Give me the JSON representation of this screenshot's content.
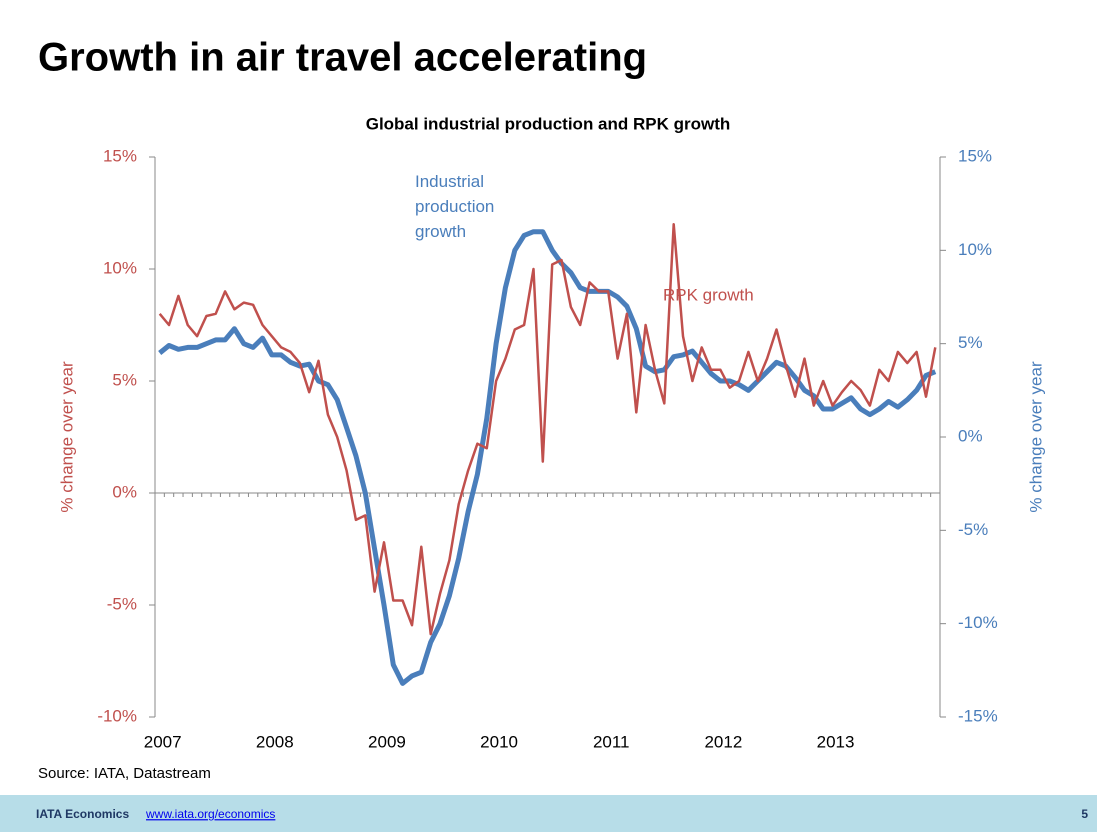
{
  "slide": {
    "title": "Growth in air travel accelerating",
    "source": "Source: IATA, Datastream",
    "footer_org": "IATA Economics",
    "footer_link": "www.iata.org/economics",
    "page": "5"
  },
  "chart_data": {
    "type": "line",
    "title": "Global industrial production and RPK growth",
    "ylabel": "% change over year",
    "y2label": "% change over year",
    "categories": [
      "2007",
      null,
      null,
      null,
      null,
      null,
      null,
      null,
      null,
      null,
      null,
      null,
      "2008",
      null,
      null,
      null,
      null,
      null,
      null,
      null,
      null,
      null,
      null,
      null,
      "2009",
      null,
      null,
      null,
      null,
      null,
      null,
      null,
      null,
      null,
      null,
      null,
      "2010",
      null,
      null,
      null,
      null,
      null,
      null,
      null,
      null,
      null,
      null,
      null,
      "2011",
      null,
      null,
      null,
      null,
      null,
      null,
      null,
      null,
      null,
      null,
      null,
      "2012",
      null,
      null,
      null,
      null,
      null,
      null,
      null,
      null,
      null,
      null,
      null,
      "2013",
      null,
      null,
      null,
      null,
      null,
      null,
      null,
      null,
      null,
      null,
      null
    ],
    "ylim": [
      -10,
      15
    ],
    "yticks": [
      {
        "value": -10,
        "label": "-10%"
      },
      {
        "value": -5,
        "label": "-5%"
      },
      {
        "value": 0,
        "label": "0%"
      },
      {
        "value": 5,
        "label": "5%"
      },
      {
        "value": 10,
        "label": "10%"
      },
      {
        "value": 15,
        "label": "15%"
      }
    ],
    "y2lim": [
      -15,
      15
    ],
    "y2ticks": [
      {
        "value": -15,
        "label": "-15%"
      },
      {
        "value": -10,
        "label": "-10%"
      },
      {
        "value": -5,
        "label": "-5%"
      },
      {
        "value": 0,
        "label": "0%"
      },
      {
        "value": 5,
        "label": "5%"
      },
      {
        "value": 10,
        "label": "10%"
      },
      {
        "value": 15,
        "label": "15%"
      }
    ],
    "annotations": [
      {
        "text": "Industrial production growth",
        "color": "#4a7ebb"
      },
      {
        "text": "RPK growth",
        "color": "#c0504d"
      }
    ],
    "series": [
      {
        "name": "RPK growth",
        "color": "#c0504d",
        "axis": "y",
        "values": [
          8.0,
          7.5,
          8.8,
          7.5,
          7.0,
          7.9,
          8.0,
          9.0,
          8.2,
          8.5,
          8.4,
          7.5,
          7.0,
          6.5,
          6.3,
          5.8,
          4.5,
          5.9,
          3.5,
          2.5,
          1.0,
          -1.2,
          -1.0,
          -4.4,
          -2.2,
          -4.8,
          -4.8,
          -5.9,
          -2.4,
          -6.3,
          -4.5,
          -3.0,
          -0.5,
          1.0,
          2.2,
          2.0,
          5.0,
          6.0,
          7.3,
          7.5,
          10.0,
          1.4,
          10.2,
          10.4,
          8.3,
          7.5,
          9.4,
          9.0,
          9.0,
          6.0,
          8.0,
          3.6,
          7.5,
          5.5,
          4.0,
          12.0,
          7.0,
          5.0,
          6.5,
          5.5,
          5.5,
          4.7,
          5.0,
          6.3,
          5.0,
          6.0,
          7.3,
          5.7,
          4.3,
          6.0,
          3.9,
          5.0,
          3.9,
          4.5,
          5.0,
          4.6,
          3.9,
          5.5,
          5.0,
          6.3,
          5.8,
          6.3,
          4.3,
          6.5
        ]
      },
      {
        "name": "Industrial production growth",
        "color": "#4a7ebb",
        "axis": "y2",
        "values": [
          4.5,
          4.9,
          4.7,
          4.8,
          4.8,
          5.0,
          5.2,
          5.2,
          5.8,
          5.0,
          4.8,
          5.3,
          4.4,
          4.4,
          4.0,
          3.8,
          3.9,
          3.0,
          2.8,
          2.0,
          0.5,
          -1.0,
          -3.0,
          -6.0,
          -9.0,
          -12.2,
          -13.2,
          -12.8,
          -12.6,
          -11.0,
          -10.0,
          -8.5,
          -6.5,
          -4.0,
          -2.0,
          1.0,
          5.0,
          8.0,
          10.0,
          10.8,
          11.0,
          11.0,
          10.0,
          9.3,
          8.8,
          8.0,
          7.8,
          7.8,
          7.8,
          7.5,
          7.0,
          5.8,
          3.8,
          3.5,
          3.6,
          4.3,
          4.4,
          4.6,
          4.0,
          3.4,
          3.0,
          3.0,
          2.8,
          2.5,
          3.0,
          3.5,
          4.0,
          3.8,
          3.2,
          2.5,
          2.2,
          1.5,
          1.5,
          1.8,
          2.1,
          1.5,
          1.2,
          1.5,
          1.9,
          1.6,
          2.0,
          2.5,
          3.3,
          3.5
        ]
      }
    ]
  }
}
